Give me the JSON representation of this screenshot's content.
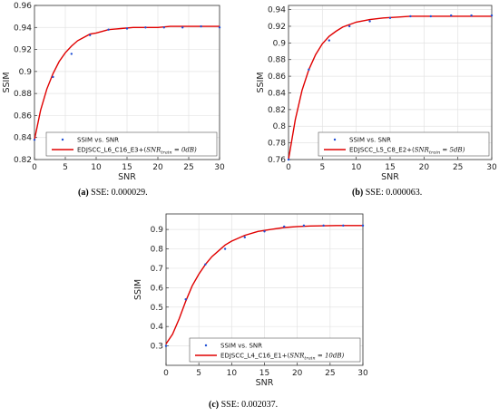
{
  "chart_data": [
    {
      "type": "line",
      "panel": "a",
      "caption_letter": "(a)",
      "caption_text": "SSE: 0.000029.",
      "xlabel": "SNR",
      "ylabel": "SSIM",
      "xlim": [
        0,
        30
      ],
      "ylim": [
        0.82,
        0.96
      ],
      "xticks": [
        0,
        5,
        10,
        15,
        20,
        25,
        30
      ],
      "yticks": [
        0.82,
        0.84,
        0.86,
        0.88,
        0.9,
        0.92,
        0.94,
        0.96
      ],
      "ytick_labels": [
        "0.82",
        "0.84",
        "0.86",
        "0.88",
        "0.9",
        "0.92",
        "0.94",
        "0.96"
      ],
      "grid": true,
      "legend_position": "bottom-right",
      "points_label": "SSIM vs. SNR",
      "fit_label_prefix": "EDJSCC_L6_C16_E3+(",
      "fit_label_sub": "SNR",
      "fit_label_subscript": "train",
      "fit_label_suffix": " = 0dB)",
      "points": {
        "x": [
          0,
          3,
          6,
          9,
          12,
          15,
          18,
          21,
          24,
          27,
          30
        ],
        "y": [
          0.838,
          0.895,
          0.916,
          0.933,
          0.938,
          0.939,
          0.94,
          0.94,
          0.94,
          0.941,
          0.94
        ]
      },
      "fit": {
        "x": [
          0,
          1,
          2,
          3,
          4,
          5,
          6,
          7,
          8,
          9,
          10,
          12,
          14,
          16,
          18,
          20,
          22,
          24,
          26,
          28,
          30
        ],
        "y": [
          0.838,
          0.865,
          0.884,
          0.898,
          0.909,
          0.917,
          0.923,
          0.928,
          0.931,
          0.934,
          0.935,
          0.938,
          0.939,
          0.94,
          0.94,
          0.94,
          0.941,
          0.941,
          0.941,
          0.941,
          0.941
        ]
      },
      "colors": {
        "points": "#1f4fd6",
        "fit": "#e00000"
      }
    },
    {
      "type": "line",
      "panel": "b",
      "caption_letter": "(b)",
      "caption_text": "SSE: 0.000063.",
      "xlabel": "SNR",
      "ylabel": "SSIM",
      "xlim": [
        0,
        30
      ],
      "ylim": [
        0.76,
        0.945
      ],
      "xticks": [
        0,
        5,
        10,
        15,
        20,
        25,
        30
      ],
      "yticks": [
        0.76,
        0.78,
        0.8,
        0.82,
        0.84,
        0.86,
        0.88,
        0.9,
        0.92,
        0.94
      ],
      "ytick_labels": [
        "0.76",
        "0.78",
        "0.8",
        "0.82",
        "0.84",
        "0.86",
        "0.88",
        "0.9",
        "0.92",
        "0.94"
      ],
      "grid": true,
      "legend_position": "bottom-right",
      "points_label": "SSIM vs. SNR",
      "fit_label_prefix": "EDJSCC_L5_C8_E2+(",
      "fit_label_sub": "SNR",
      "fit_label_subscript": "train",
      "fit_label_suffix": " = 5dB)",
      "points": {
        "x": [
          0,
          3,
          6,
          9,
          12,
          15,
          18,
          21,
          24,
          27,
          30
        ],
        "y": [
          0.76,
          0.868,
          0.903,
          0.92,
          0.926,
          0.93,
          0.932,
          0.932,
          0.933,
          0.933,
          0.933
        ]
      },
      "fit": {
        "x": [
          0,
          1,
          2,
          3,
          4,
          5,
          6,
          7,
          8,
          9,
          10,
          12,
          14,
          16,
          18,
          20,
          22,
          24,
          26,
          28,
          30
        ],
        "y": [
          0.76,
          0.808,
          0.843,
          0.868,
          0.886,
          0.899,
          0.908,
          0.914,
          0.919,
          0.922,
          0.925,
          0.928,
          0.93,
          0.931,
          0.932,
          0.932,
          0.932,
          0.932,
          0.932,
          0.932,
          0.932
        ]
      },
      "colors": {
        "points": "#1f4fd6",
        "fit": "#e00000"
      }
    },
    {
      "type": "line",
      "panel": "c",
      "caption_letter": "(c)",
      "caption_text": "SSE: 0.002037.",
      "xlabel": "SNR",
      "ylabel": "SSIM",
      "xlim": [
        0,
        30
      ],
      "ylim": [
        0.2,
        0.98
      ],
      "xticks": [
        0,
        5,
        10,
        15,
        20,
        25,
        30
      ],
      "yticks": [
        0.3,
        0.4,
        0.5,
        0.6,
        0.7,
        0.8,
        0.9
      ],
      "ytick_labels": [
        "0.3",
        "0.4",
        "0.5",
        "0.6",
        "0.7",
        "0.8",
        "0.9"
      ],
      "grid": true,
      "legend_position": "bottom-right",
      "points_label": "SSIM vs. SNR",
      "fit_label_prefix": "EDJSCC_L4_C16_E1+(",
      "fit_label_sub": "SNR",
      "fit_label_subscript": "train",
      "fit_label_suffix": " = 10dB)",
      "points": {
        "x": [
          0,
          3,
          6,
          9,
          12,
          15,
          18,
          21,
          24,
          27,
          30
        ],
        "y": [
          0.3,
          0.54,
          0.72,
          0.8,
          0.86,
          0.89,
          0.915,
          0.92,
          0.92,
          0.92,
          0.92
        ]
      },
      "fit": {
        "x": [
          0,
          1,
          2,
          3,
          4,
          5,
          6,
          7,
          8,
          9,
          10,
          12,
          14,
          16,
          18,
          20,
          22,
          24,
          26,
          28,
          30
        ],
        "y": [
          0.31,
          0.36,
          0.44,
          0.53,
          0.61,
          0.67,
          0.72,
          0.76,
          0.79,
          0.82,
          0.84,
          0.87,
          0.89,
          0.9,
          0.91,
          0.915,
          0.918,
          0.919,
          0.92,
          0.92,
          0.92
        ]
      },
      "colors": {
        "points": "#1f4fd6",
        "fit": "#e00000"
      }
    }
  ]
}
